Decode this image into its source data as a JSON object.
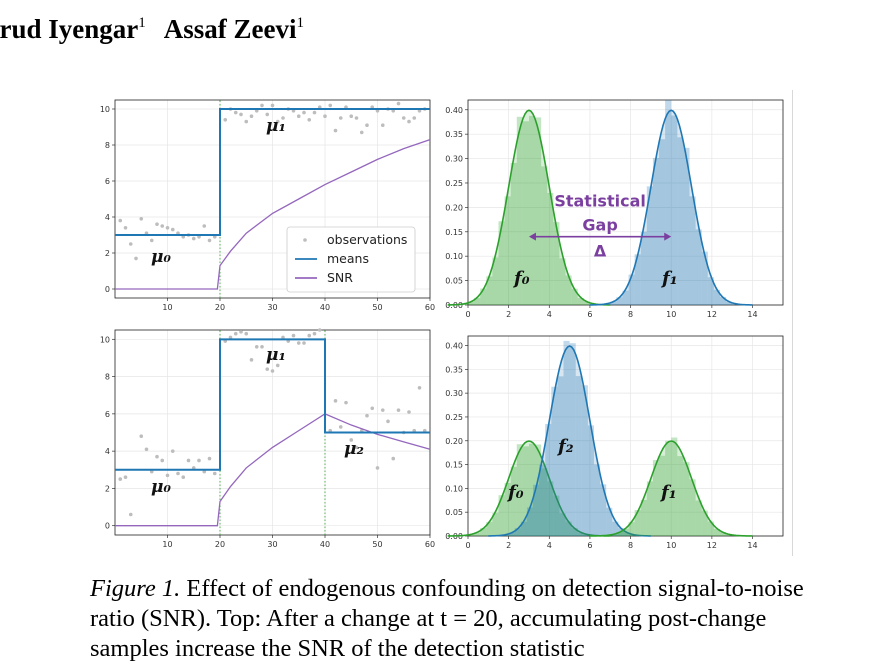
{
  "authors": [
    {
      "name": "arud Iyengar",
      "affil": "1"
    },
    {
      "name": "Assaf Zeevi",
      "affil": "1"
    }
  ],
  "caption": {
    "lead": "Figure 1.",
    "text": "Effect of endogenous confounding on detection signal-to-noise ratio (SNR). Top: After a change at t = 20, accumulating post-change samples increase the SNR of the detection statistic"
  },
  "colors": {
    "means": "#1f77b4",
    "snr": "#9467bd",
    "green": "#2ca02c",
    "annot": "#7b3fa0"
  },
  "chart_data": [
    {
      "type": "line",
      "id": "top-left",
      "xlim": [
        0,
        60
      ],
      "ylim": [
        -0.5,
        10.5
      ],
      "xticks": [
        10,
        20,
        30,
        40,
        50,
        60
      ],
      "yticks": [
        0,
        2,
        4,
        6,
        8,
        10
      ],
      "legend": {
        "position": "bottom-right",
        "entries": [
          "observations",
          "means",
          "SNR"
        ]
      },
      "means": [
        [
          0,
          3
        ],
        [
          20,
          3
        ],
        [
          20,
          10
        ],
        [
          60,
          10
        ]
      ],
      "snr": {
        "x": [
          0,
          19.5,
          20,
          22,
          25,
          30,
          35,
          40,
          45,
          50,
          55,
          60
        ],
        "y": [
          0,
          0,
          1.3,
          2.1,
          3.1,
          4.2,
          5.0,
          5.8,
          6.5,
          7.2,
          7.8,
          8.3
        ]
      },
      "change_points": [
        20
      ],
      "observations": {
        "x": [
          1,
          2,
          3,
          4,
          5,
          6,
          7,
          8,
          9,
          10,
          11,
          12,
          13,
          14,
          15,
          16,
          17,
          18,
          19,
          21,
          22,
          23,
          24,
          25,
          26,
          27,
          28,
          29,
          30,
          31,
          32,
          33,
          34,
          35,
          36,
          37,
          38,
          39,
          40,
          41,
          42,
          43,
          44,
          45,
          46,
          47,
          48,
          49,
          50,
          51,
          52,
          53,
          54,
          55,
          56,
          57,
          58,
          59
        ],
        "y": [
          3.8,
          3.4,
          2.5,
          1.7,
          3.9,
          3.1,
          2.7,
          3.6,
          3.5,
          3.4,
          3.3,
          3.1,
          2.9,
          3.0,
          2.8,
          2.9,
          3.5,
          2.7,
          2.9,
          9.4,
          10.0,
          9.8,
          9.7,
          9.3,
          9.6,
          9.9,
          10.2,
          9.7,
          10.2,
          9.3,
          9.5,
          10.0,
          9.9,
          9.6,
          9.8,
          9.4,
          9.8,
          10.1,
          9.6,
          10.2,
          8.8,
          9.5,
          10.1,
          9.6,
          9.5,
          8.7,
          9.1,
          10.1,
          9.9,
          9.1,
          10.0,
          9.9,
          10.3,
          9.5,
          9.3,
          9.5,
          9.9,
          10.0
        ]
      },
      "labels": [
        "μ₀",
        "μ₁"
      ]
    },
    {
      "type": "area",
      "id": "top-right",
      "xlim": [
        0,
        15.5
      ],
      "ylim": [
        0,
        0.42
      ],
      "xticks": [
        0,
        2,
        4,
        6,
        8,
        10,
        12,
        14
      ],
      "yticks": [
        0.0,
        0.05,
        0.1,
        0.15,
        0.2,
        0.25,
        0.3,
        0.35,
        0.4
      ],
      "series": [
        {
          "name": "f₀",
          "mean": 3,
          "sd": 1,
          "scale": 1,
          "color": "green"
        },
        {
          "name": "f₁",
          "mean": 10,
          "sd": 1,
          "scale": 1,
          "color": "blue"
        }
      ],
      "annotation": {
        "text": [
          "Statistical",
          "Gap",
          "Δ"
        ],
        "from": 3,
        "to": 10,
        "y": 0.14
      }
    },
    {
      "type": "line",
      "id": "bottom-left",
      "xlim": [
        0,
        60
      ],
      "ylim": [
        -0.5,
        10.5
      ],
      "xticks": [
        10,
        20,
        30,
        40,
        50,
        60
      ],
      "yticks": [
        0,
        2,
        4,
        6,
        8,
        10
      ],
      "means": [
        [
          0,
          3
        ],
        [
          20,
          3
        ],
        [
          20,
          10
        ],
        [
          40,
          10
        ],
        [
          40,
          5
        ],
        [
          60,
          5
        ]
      ],
      "snr": {
        "x": [
          0,
          19.5,
          20,
          22,
          25,
          30,
          35,
          40,
          45,
          50,
          55,
          60
        ],
        "y": [
          0,
          0,
          1.3,
          2.1,
          3.1,
          4.2,
          5.1,
          6.0,
          5.4,
          4.9,
          4.5,
          4.1
        ]
      },
      "change_points": [
        20,
        40
      ],
      "observations": {
        "x": [
          1,
          2,
          3,
          5,
          6,
          7,
          8,
          9,
          10,
          11,
          12,
          13,
          14,
          15,
          16,
          17,
          18,
          19,
          21,
          22,
          23,
          24,
          25,
          26,
          27,
          28,
          29,
          30,
          31,
          32,
          33,
          34,
          35,
          36,
          37,
          38,
          39,
          41,
          42,
          43,
          44,
          45,
          46,
          47,
          48,
          49,
          50,
          51,
          52,
          53,
          54,
          55,
          56,
          57,
          58,
          59
        ],
        "y": [
          2.5,
          2.6,
          0.6,
          4.8,
          4.1,
          2.9,
          3.7,
          3.5,
          2.7,
          4.0,
          2.8,
          2.6,
          3.5,
          3.1,
          3.5,
          2.9,
          3.6,
          2.8,
          9.9,
          10.1,
          10.3,
          10.4,
          10.3,
          8.9,
          9.6,
          9.6,
          8.4,
          8.3,
          8.6,
          10.1,
          9.9,
          10.2,
          9.8,
          9.8,
          10.2,
          10.3,
          10.5,
          5.1,
          6.7,
          5.3,
          6.6,
          4.6,
          4.2,
          5.1,
          5.9,
          6.3,
          3.1,
          6.2,
          5.6,
          3.6,
          6.2,
          5.0,
          6.1,
          5.1,
          7.4,
          5.1
        ]
      },
      "labels": [
        "μ₀",
        "μ₁",
        "μ₂"
      ]
    },
    {
      "type": "area",
      "id": "bottom-right",
      "xlim": [
        0,
        15.5
      ],
      "ylim": [
        0,
        0.42
      ],
      "xticks": [
        0,
        2,
        4,
        6,
        8,
        10,
        12,
        14
      ],
      "yticks": [
        0.0,
        0.05,
        0.1,
        0.15,
        0.2,
        0.25,
        0.3,
        0.35,
        0.4
      ],
      "series": [
        {
          "name": "f₀",
          "mean": 3,
          "sd": 1,
          "scale": 0.5,
          "color": "green"
        },
        {
          "name": "f₂",
          "mean": 5,
          "sd": 1,
          "scale": 1,
          "color": "blue"
        },
        {
          "name": "f₁",
          "mean": 10,
          "sd": 1,
          "scale": 0.5,
          "color": "green"
        }
      ]
    }
  ]
}
